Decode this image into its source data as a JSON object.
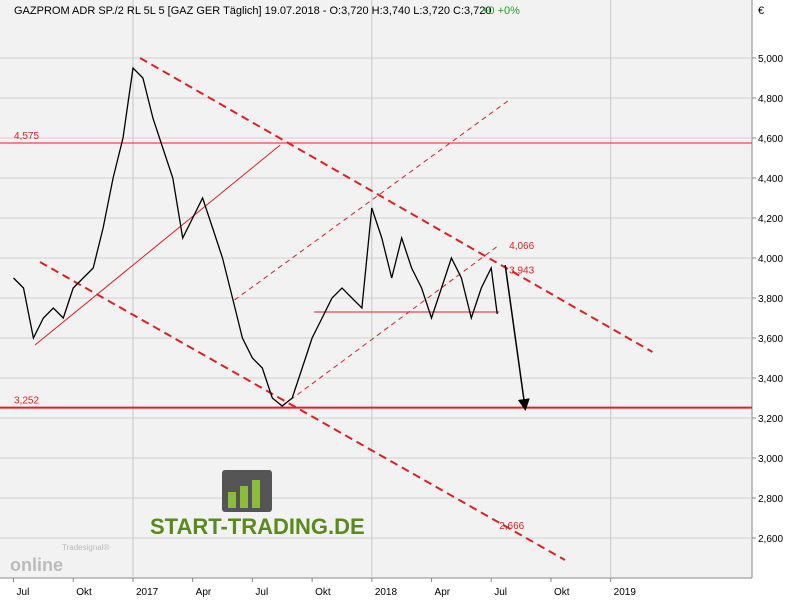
{
  "chart_data": {
    "type": "line",
    "title": "GAZPROM ADR SP./2 RL 5L 5 [GAZ GER  Täglich] 19.07.2018 - O:3,720 H:3,740 L:3,720 C:3,720",
    "change": "+0 +0%",
    "currency": "€",
    "watermark": "START-TRADING.DE",
    "logo": "online",
    "logo_sub": "Tradesignal®",
    "grid": true,
    "xlim": [
      -0.68,
      37.1
    ],
    "ylim": [
      2400,
      5290
    ],
    "xticks": [
      {
        "value": 0,
        "label": "Jul"
      },
      {
        "value": 3,
        "label": "Okt"
      },
      {
        "value": 6,
        "label": "2017"
      },
      {
        "value": 9,
        "label": "Apr"
      },
      {
        "value": 12,
        "label": "Jul"
      },
      {
        "value": 15,
        "label": "Okt"
      },
      {
        "value": 18,
        "label": "2018"
      },
      {
        "value": 21,
        "label": "Apr"
      },
      {
        "value": 24,
        "label": "Jul"
      },
      {
        "value": 27,
        "label": "Okt"
      },
      {
        "value": 30,
        "label": "2019"
      }
    ],
    "yticks": [
      {
        "value": 2600,
        "label": "2,600"
      },
      {
        "value": 2800,
        "label": "2,800"
      },
      {
        "value": 3000,
        "label": "3,000"
      },
      {
        "value": 3200,
        "label": "3,200"
      },
      {
        "value": 3400,
        "label": "3,400"
      },
      {
        "value": 3600,
        "label": "3,600"
      },
      {
        "value": 3800,
        "label": "3,800"
      },
      {
        "value": 4000,
        "label": "4,000"
      },
      {
        "value": 4200,
        "label": "4,200"
      },
      {
        "value": 4400,
        "label": "4,400"
      },
      {
        "value": 4600,
        "label": "4,600"
      },
      {
        "value": 4800,
        "label": "4,800"
      },
      {
        "value": 5000,
        "label": "5,000"
      }
    ],
    "series": [
      {
        "name": "GAZPROM ADR",
        "color": "#000000",
        "x": [
          0,
          0.5,
          1,
          1.5,
          2,
          2.5,
          3,
          3.5,
          4,
          4.5,
          5,
          5.5,
          6,
          6.5,
          7,
          7.5,
          8,
          8.5,
          9,
          9.5,
          10,
          10.5,
          11,
          11.5,
          12,
          12.5,
          13,
          13.5,
          14,
          14.5,
          15,
          15.5,
          16,
          16.5,
          17,
          17.5,
          18,
          18.5,
          19,
          19.5,
          20,
          20.5,
          21,
          21.5,
          22,
          22.5,
          23,
          23.5,
          24,
          24.3
        ],
        "values": [
          3900,
          3850,
          3600,
          3700,
          3750,
          3700,
          3850,
          3900,
          3950,
          4150,
          4400,
          4600,
          4950,
          4900,
          4700,
          4550,
          4400,
          4100,
          4200,
          4300,
          4150,
          4000,
          3800,
          3600,
          3500,
          3450,
          3300,
          3260,
          3300,
          3450,
          3600,
          3700,
          3800,
          3850,
          3800,
          3750,
          4250,
          4100,
          3900,
          4100,
          3950,
          3850,
          3700,
          3850,
          4000,
          3900,
          3700,
          3850,
          3950,
          3720
        ]
      }
    ],
    "hlines": [
      {
        "value": 4575,
        "label": "4,575"
      },
      {
        "value": 3252,
        "label": "3,252"
      }
    ],
    "trendlines": [
      {
        "x": [
          6.36,
          32.1
        ],
        "values": [
          5000,
          3530
        ],
        "style": "dashed"
      },
      {
        "x": [
          1.33,
          27.7
        ],
        "values": [
          3980,
          2490
        ],
        "style": "dashed"
      },
      {
        "x": [
          11.1,
          24.9
        ],
        "values": [
          3790,
          4790
        ],
        "style": "thin-dashed"
      },
      {
        "x": [
          13.9,
          24.4
        ],
        "values": [
          3290,
          4065
        ],
        "style": "thin-dashed"
      },
      {
        "x": [
          1.08,
          13.4
        ],
        "values": [
          3565,
          4565
        ],
        "style": "solid"
      },
      {
        "x": [
          15.1,
          24.4
        ],
        "values": [
          3730,
          3730
        ],
        "style": "solid"
      }
    ],
    "arrow": {
      "x": [
        24.7,
        25.7
      ],
      "values": [
        3965,
        3250
      ]
    },
    "annotations": [
      {
        "x": 24.9,
        "value": 4066,
        "label": "4,066"
      },
      {
        "x": 24.9,
        "value": 3943,
        "label": "3,943"
      },
      {
        "x": 24.4,
        "value": 2666,
        "label": "2,666"
      }
    ]
  }
}
